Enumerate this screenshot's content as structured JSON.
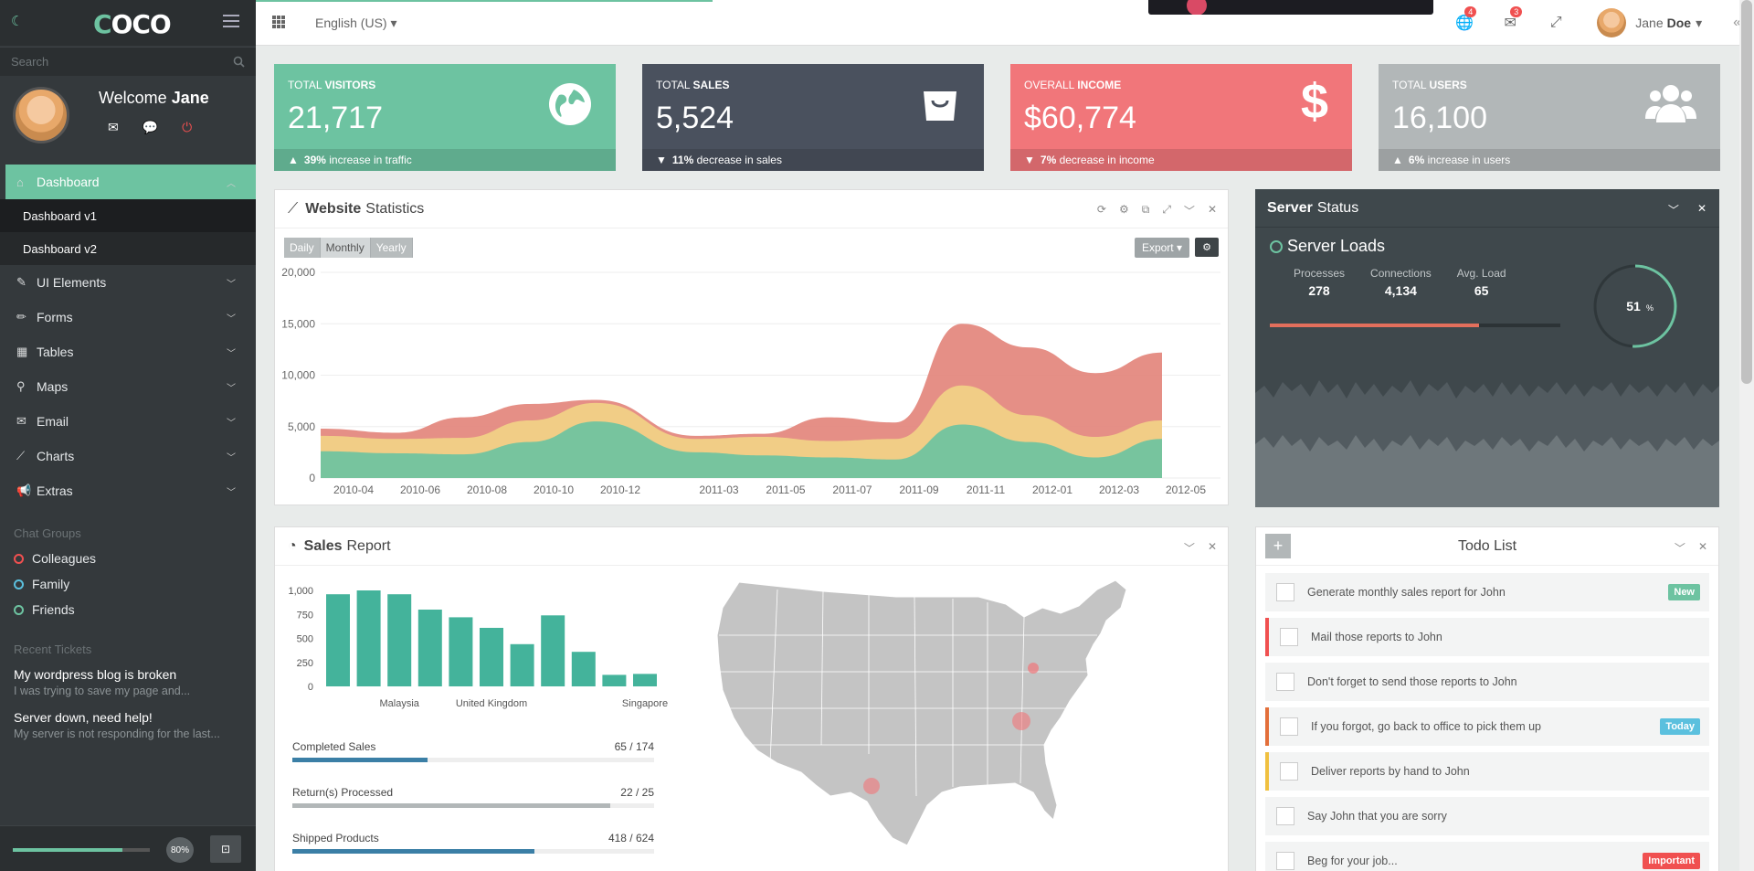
{
  "sidebar": {
    "logo": "COCO",
    "search_placeholder": "Search",
    "welcome_prefix": "Welcome",
    "welcome_name": "Jane",
    "nav": [
      {
        "label": "Dashboard",
        "icon": "home-icon",
        "active": true
      },
      {
        "label": "UI Elements",
        "icon": "feather-icon"
      },
      {
        "label": "Forms",
        "icon": "pencil-icon"
      },
      {
        "label": "Tables",
        "icon": "table-icon"
      },
      {
        "label": "Maps",
        "icon": "map-marker-icon"
      },
      {
        "label": "Email",
        "icon": "envelope-icon"
      },
      {
        "label": "Charts",
        "icon": "line-chart-icon"
      },
      {
        "label": "Extras",
        "icon": "bullhorn-icon"
      }
    ],
    "subnav": [
      "Dashboard v1",
      "Dashboard v2"
    ],
    "chat_groups_title": "Chat Groups",
    "chat_groups": [
      {
        "label": "Colleagues",
        "color": "#f05050"
      },
      {
        "label": "Family",
        "color": "#5bc0de"
      },
      {
        "label": "Friends",
        "color": "#6dc3a1"
      }
    ],
    "tickets_title": "Recent Tickets",
    "tickets": [
      {
        "title": "My wordpress blog is broken",
        "desc": "I was trying to save my page and..."
      },
      {
        "title": "Server down, need help!",
        "desc": "My server is not responding for the last..."
      }
    ],
    "progress_value": 0.8,
    "progress_label": "80%"
  },
  "topbar": {
    "language": "English (US)",
    "badges": {
      "globe": "4",
      "mail": "3"
    },
    "user_first": "Jane",
    "user_last": "Doe"
  },
  "stats": [
    {
      "label_pre": "TOTAL",
      "label_b": "VISITORS",
      "value": "21,717",
      "foot_dir": "up",
      "foot_pct": "39%",
      "foot_text": "increase in traffic",
      "color": "#6dc3a1",
      "icon": "globe-icon"
    },
    {
      "label_pre": "TOTAL",
      "label_b": "SALES",
      "value": "5,524",
      "foot_dir": "down",
      "foot_pct": "11%",
      "foot_text": "decrease in sales",
      "color": "#4a515e",
      "icon": "shopping-bag-icon"
    },
    {
      "label_pre": "OVERALL",
      "label_b": "INCOME",
      "value": "$60,774",
      "foot_dir": "down",
      "foot_pct": "7%",
      "foot_text": "decrease in income",
      "color": "#f1767a",
      "icon": "dollar-icon"
    },
    {
      "label_pre": "TOTAL",
      "label_b": "USERS",
      "value": "16,100",
      "foot_dir": "up",
      "foot_pct": "6%",
      "foot_text": "increase in users",
      "color": "#b2b7b8",
      "icon": "users-icon"
    }
  ],
  "website_stats": {
    "title_b": "Website",
    "title": "Statistics",
    "buttons": [
      "Daily",
      "Monthly",
      "Yearly"
    ],
    "export": "Export"
  },
  "server": {
    "title_b": "Server",
    "title": "Status",
    "loads": "Server Loads",
    "metrics": [
      {
        "label": "Processes",
        "value": "278"
      },
      {
        "label": "Connections",
        "value": "4,134"
      },
      {
        "label": "Avg. Load",
        "value": "65"
      }
    ],
    "bar_value": 0.72,
    "gauge_value": 51,
    "gauge_num": "51",
    "gauge_unit": "%"
  },
  "sales": {
    "title_b": "Sales",
    "title": "Report",
    "progress": [
      {
        "label": "Completed Sales",
        "value": "65 / 174",
        "fraction": 0.374,
        "color": "#3b7fa6"
      },
      {
        "label": "Return(s) Processed",
        "value": "22 / 25",
        "fraction": 0.88,
        "color": "#b2b7b8"
      },
      {
        "label": "Shipped Products",
        "value": "418 / 624",
        "fraction": 0.67,
        "color": "#3b7fa6"
      }
    ]
  },
  "todo": {
    "title": "Todo List",
    "items": [
      {
        "text": "Generate monthly sales report for John",
        "tag": "New",
        "tag_color": "#6dc3a1",
        "border": ""
      },
      {
        "text": "Mail those reports to John",
        "tag": "",
        "border": "#f05050"
      },
      {
        "text": "Don't forget to send those reports to John",
        "tag": "",
        "border": ""
      },
      {
        "text": "If you forgot, go back to office to pick them up",
        "tag": "Today",
        "tag_color": "#5bc0de",
        "border": "#e36f3a"
      },
      {
        "text": "Deliver reports by hand to John",
        "tag": "",
        "border": "#f0c040"
      },
      {
        "text": "Say John that you are sorry",
        "tag": "",
        "border": ""
      },
      {
        "text": "Beg for your job...",
        "tag": "Important",
        "tag_color": "#f05050",
        "border": ""
      }
    ]
  },
  "chart_data": [
    {
      "type": "area",
      "x": [
        "2010-04",
        "2010-06",
        "2010-08",
        "2010-10",
        "2010-12",
        "2011-03",
        "2011-05",
        "2011-07",
        "2011-09",
        "2011-11",
        "2012-01",
        "2012-03",
        "2012-05"
      ],
      "xticks": [
        "2010-04",
        "2010-06",
        "2010-08",
        "2010-10",
        "2010-12",
        "2011-03",
        "2011-05",
        "2011-07",
        "2011-09",
        "2011-11",
        "2012-01",
        "2012-03",
        "2012-05"
      ],
      "series": [
        {
          "values": [
            2600,
            2400,
            2300,
            3500,
            5500,
            2500,
            2200,
            2000,
            1800,
            5200,
            3500,
            2000,
            3800
          ],
          "color": "#6dc3a1"
        },
        {
          "values": [
            1500,
            1400,
            1600,
            2100,
            1800,
            1300,
            1800,
            1600,
            2000,
            3800,
            2600,
            2000,
            1800
          ],
          "color": "#f2d387"
        },
        {
          "values": [
            700,
            600,
            2000,
            1600,
            300,
            300,
            300,
            2300,
            1600,
            6000,
            6600,
            6200,
            6600
          ],
          "color": "#e3867c"
        }
      ],
      "ylim": [
        0,
        20000
      ],
      "yticks": [
        "0",
        "5,000",
        "10,000",
        "15,000",
        "20,000"
      ]
    },
    {
      "type": "bar",
      "categories": [
        "",
        "",
        "Malaysia",
        "",
        "",
        "United Kingdom",
        "",
        "",
        "",
        "",
        "Singapore"
      ],
      "values": [
        960,
        1000,
        960,
        800,
        720,
        610,
        440,
        740,
        360,
        120,
        130
      ],
      "xticks": [
        "Malaysia",
        "United Kingdom",
        "Singapore"
      ],
      "ylim": [
        0,
        1000
      ],
      "yticks": [
        "0",
        "250",
        "500",
        "750",
        "1,000"
      ],
      "color": "#44b39b"
    }
  ]
}
